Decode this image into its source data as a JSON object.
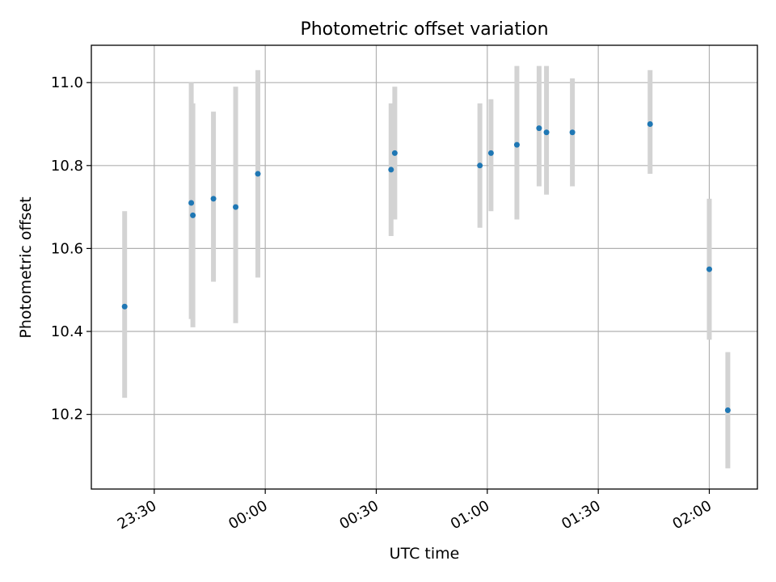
{
  "chart_data": {
    "type": "scatter",
    "title": "Photometric offset variation",
    "xlabel": "UTC time",
    "ylabel": "Photometric offset",
    "x_tick_labels": [
      "23:30",
      "00:00",
      "00:30",
      "01:00",
      "01:30",
      "02:00"
    ],
    "x_tick_times": [
      "23:30",
      "00:00",
      "00:30",
      "01:00",
      "01:30",
      "02:00"
    ],
    "xlim": [
      "23:13",
      "02:13"
    ],
    "y_tick_labels": [
      "10.2",
      "10.4",
      "10.6",
      "10.8",
      "11.0"
    ],
    "y_ticks": [
      10.2,
      10.4,
      10.6,
      10.8,
      11.0
    ],
    "ylim": [
      10.02,
      11.09
    ],
    "grid": true,
    "point_color": "#1f77b4",
    "errorbar_color": "#d3d3d3",
    "points": [
      {
        "t": "23:22",
        "y": 10.46,
        "lo": 10.24,
        "hi": 10.69
      },
      {
        "t": "23:40",
        "y": 10.71,
        "lo": 10.43,
        "hi": 11.0
      },
      {
        "t": "23:40",
        "y": 10.68,
        "lo": 10.41,
        "hi": 10.95
      },
      {
        "t": "23:46",
        "y": 10.72,
        "lo": 10.52,
        "hi": 10.93
      },
      {
        "t": "23:52",
        "y": 10.7,
        "lo": 10.42,
        "hi": 10.99
      },
      {
        "t": "23:58",
        "y": 10.78,
        "lo": 10.53,
        "hi": 11.03
      },
      {
        "t": "00:34",
        "y": 10.79,
        "lo": 10.63,
        "hi": 10.95
      },
      {
        "t": "00:35",
        "y": 10.83,
        "lo": 10.67,
        "hi": 10.99
      },
      {
        "t": "00:58",
        "y": 10.8,
        "lo": 10.65,
        "hi": 10.95
      },
      {
        "t": "01:01",
        "y": 10.83,
        "lo": 10.69,
        "hi": 10.96
      },
      {
        "t": "01:08",
        "y": 10.85,
        "lo": 10.67,
        "hi": 11.04
      },
      {
        "t": "01:14",
        "y": 10.89,
        "lo": 10.75,
        "hi": 11.04
      },
      {
        "t": "01:16",
        "y": 10.88,
        "lo": 10.73,
        "hi": 11.04
      },
      {
        "t": "01:23",
        "y": 10.88,
        "lo": 10.75,
        "hi": 11.01
      },
      {
        "t": "01:44",
        "y": 10.9,
        "lo": 10.78,
        "hi": 11.03
      },
      {
        "t": "02:00",
        "y": 10.55,
        "lo": 10.38,
        "hi": 10.72
      },
      {
        "t": "02:05",
        "y": 10.21,
        "lo": 10.07,
        "hi": 10.35
      }
    ]
  }
}
